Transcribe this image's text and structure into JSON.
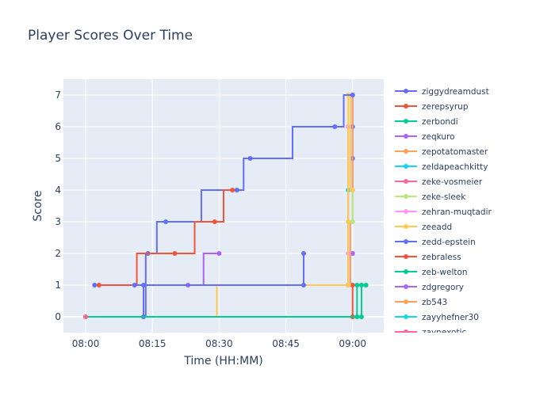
{
  "chart_data": {
    "type": "line",
    "line_shape": "step",
    "title": "Player Scores Over Time",
    "xlabel": "Time (HH:MM)",
    "ylabel": "Score",
    "x_ticks": [
      "08:00",
      "08:15",
      "08:30",
      "08:45",
      "09:00"
    ],
    "y_ticks": [
      0,
      1,
      2,
      3,
      4,
      5,
      6,
      7
    ],
    "xlim": [
      "07:55",
      "09:07"
    ],
    "ylim": [
      -0.5,
      7.5
    ],
    "grid": true,
    "legend_position": "right",
    "series": [
      {
        "name": "ziggydreamdust",
        "color": "#636efa",
        "points": [
          [
            "09:00",
            4
          ],
          [
            "09:00",
            5
          ],
          [
            "09:00",
            6
          ],
          [
            "09:00",
            7
          ]
        ]
      },
      {
        "name": "zerepsyrup",
        "color": "#ef553b",
        "points": [
          [
            "09:00",
            0
          ],
          [
            "09:00",
            1
          ]
        ]
      },
      {
        "name": "zerbondi",
        "color": "#00cc96",
        "points": [
          [
            "09:01",
            0
          ],
          [
            "09:01",
            1
          ]
        ]
      },
      {
        "name": "zeqkuro",
        "color": "#ab63fa",
        "points": [
          [
            "08:59",
            1
          ],
          [
            "09:00",
            2
          ]
        ]
      },
      {
        "name": "zepotatomaster",
        "color": "#ffa15a",
        "points": [
          [
            "08:59",
            1
          ],
          [
            "09:00",
            3
          ],
          [
            "09:00",
            7
          ]
        ]
      },
      {
        "name": "zeldapeachkitty",
        "color": "#19d3f3",
        "points": [
          [
            "08:59",
            1
          ],
          [
            "08:59",
            4
          ]
        ]
      },
      {
        "name": "zeke-vosmeier",
        "color": "#ff6692",
        "points": [
          [
            "08:59",
            1
          ],
          [
            "08:59",
            6
          ]
        ]
      },
      {
        "name": "zeke-sleek",
        "color": "#b6e880",
        "points": [
          [
            "09:00",
            3
          ],
          [
            "09:00",
            4
          ]
        ]
      },
      {
        "name": "zehran-muqtadir",
        "color": "#ff97ff",
        "points": [
          [
            "08:59",
            1
          ],
          [
            "08:59",
            2
          ],
          [
            "08:59",
            6
          ]
        ]
      },
      {
        "name": "zeeadd",
        "color": "#fecb52",
        "points": [
          [
            "08:00",
            0
          ],
          [
            "08:59",
            1
          ],
          [
            "08:59",
            3
          ],
          [
            "08:59",
            7
          ],
          [
            "09:00",
            4
          ]
        ]
      },
      {
        "name": "zedd-epstein",
        "color": "#636efa",
        "points": [
          [
            "08:02",
            1
          ],
          [
            "08:13",
            1
          ],
          [
            "08:13",
            0
          ],
          [
            "08:14",
            2
          ],
          [
            "08:18",
            3
          ],
          [
            "08:34",
            4
          ],
          [
            "08:37",
            5
          ],
          [
            "08:56",
            6
          ],
          [
            "09:00",
            7
          ]
        ]
      },
      {
        "name": "zebraless",
        "color": "#ef553b",
        "points": [
          [
            "08:03",
            1
          ],
          [
            "08:20",
            2
          ],
          [
            "08:29",
            3
          ],
          [
            "08:33",
            4
          ]
        ]
      },
      {
        "name": "zeb-welton",
        "color": "#00cc96",
        "points": [
          [
            "08:00",
            0
          ],
          [
            "09:02",
            0
          ],
          [
            "09:02",
            1
          ],
          [
            "09:03",
            1
          ]
        ]
      },
      {
        "name": "zdgregory",
        "color": "#ab63fa",
        "points": [
          [
            "08:23",
            1
          ],
          [
            "08:30",
            2
          ]
        ]
      },
      {
        "name": "zb543",
        "color": "#ffa15a",
        "points": [
          [
            "08:00",
            0
          ]
        ]
      },
      {
        "name": "zayyhefner30",
        "color": "#19d3f3",
        "points": [
          [
            "08:00",
            0
          ]
        ]
      },
      {
        "name": "zaynexotic",
        "color": "#ff6692",
        "points": [
          [
            "08:00",
            0
          ]
        ]
      },
      {
        "name": "",
        "color": "#636efa",
        "points": [
          [
            "08:11",
            1
          ],
          [
            "08:49",
            1
          ],
          [
            "08:49",
            2
          ]
        ]
      }
    ]
  }
}
